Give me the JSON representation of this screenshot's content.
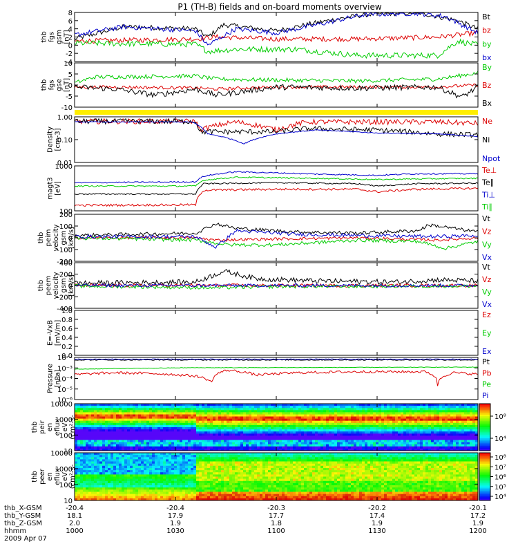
{
  "chart_data": {
    "type": "line",
    "title": "P1 (TH-B) fields and on-board moments overview",
    "colors": {
      "black": "#000000",
      "red": "#dd0000",
      "green": "#00cc00",
      "blue": "#0000cc",
      "yellow": "#ffee00"
    },
    "x_ticks": [
      {
        "utc": "1000",
        "x_gsm": "-20.4",
        "y_gsm": "18.1",
        "z_gsm": "2.0"
      },
      {
        "utc": "1030",
        "x_gsm": "-20.4",
        "y_gsm": "17.9",
        "z_gsm": "1.9"
      },
      {
        "utc": "1100",
        "x_gsm": "-20.3",
        "y_gsm": "17.7",
        "z_gsm": "1.8"
      },
      {
        "utc": "1130",
        "x_gsm": "-20.2",
        "y_gsm": "17.4",
        "z_gsm": "1.9"
      },
      {
        "utc": "1200",
        "x_gsm": "-20.1",
        "y_gsm": "17.2",
        "z_gsm": "1.9"
      }
    ],
    "x_row_labels": [
      "thb_X-GSM",
      "thb_Y-GSM",
      "thb_Z-GSM",
      "hhmm",
      "2009 Apr 07"
    ],
    "panels": [
      {
        "ylabel": [
          "thb",
          "fgs",
          "gsm",
          "[nT]"
        ],
        "ylim": [
          -4,
          8
        ],
        "ticks": [
          "8",
          "6",
          "4",
          "2",
          "0",
          "-2",
          "-4"
        ],
        "series": [
          {
            "name": "Bt",
            "color": "black"
          },
          {
            "name": "bz",
            "color": "red"
          },
          {
            "name": "by",
            "color": "green"
          },
          {
            "name": "bx",
            "color": "blue"
          }
        ]
      },
      {
        "ylabel": [
          "thb",
          "fgs",
          "gse",
          "[nT]"
        ],
        "ylim": [
          -12,
          10
        ],
        "ticks": [
          "10",
          "5",
          "0",
          "-5",
          "-10"
        ],
        "series": [
          {
            "name": "By",
            "color": "green"
          },
          {
            "name": "Bz",
            "color": "red"
          },
          {
            "name": "Bx",
            "color": "black"
          }
        ]
      },
      {
        "ylabel": [
          "Density",
          "[cm-3]"
        ],
        "scale": "log",
        "ylim": [
          0.01,
          1.2
        ],
        "ticks": [
          "1.00",
          "0.10",
          "0.01"
        ],
        "series": [
          {
            "name": "Ne",
            "color": "red"
          },
          {
            "name": "Ni",
            "color": "black"
          },
          {
            "name": "Npot",
            "color": "blue"
          }
        ]
      },
      {
        "ylabel": [
          "magt3",
          "[eV]"
        ],
        "scale": "log",
        "ylim": [
          50,
          6000
        ],
        "ticks": [
          "1000",
          "100"
        ],
        "series": [
          {
            "name": "Te⊥",
            "color": "red"
          },
          {
            "name": "Te∥",
            "color": "black"
          },
          {
            "name": "Ti⊥",
            "color": "blue"
          },
          {
            "name": "Ti∥",
            "color": "green"
          }
        ]
      },
      {
        "ylabel": [
          "thb",
          "peim",
          "velocity",
          "gsm",
          "[km/s]"
        ],
        "ylim": [
          -200,
          200
        ],
        "ticks": [
          "200",
          "100",
          "0",
          "-100",
          "-200"
        ],
        "series": [
          {
            "name": "Vt",
            "color": "black"
          },
          {
            "name": "Vz",
            "color": "red"
          },
          {
            "name": "Vy",
            "color": "green"
          },
          {
            "name": "Vx",
            "color": "blue"
          }
        ]
      },
      {
        "ylabel": [
          "thb",
          "peem",
          "velocity",
          "gsm",
          "[km/s]"
        ],
        "ylim": [
          -400,
          400
        ],
        "ticks": [
          "400",
          "200",
          "0",
          "-200",
          "-400"
        ],
        "series": [
          {
            "name": "Vt",
            "color": "black"
          },
          {
            "name": "Vz",
            "color": "red"
          },
          {
            "name": "Vy",
            "color": "green"
          },
          {
            "name": "Vx",
            "color": "blue"
          }
        ]
      },
      {
        "ylabel": [
          "E=-VxB",
          "[mV/m]"
        ],
        "ylim": [
          0,
          1
        ],
        "ticks": [
          "1.0",
          "0.8",
          "0.6",
          "0.4",
          "0.2",
          "0.0"
        ],
        "series": [
          {
            "name": "Ez",
            "color": "red"
          },
          {
            "name": "Ey",
            "color": "green"
          },
          {
            "name": "Ex",
            "color": "blue"
          }
        ]
      },
      {
        "ylabel": [
          "Pressure",
          "[nPa]"
        ],
        "scale": "log",
        "ylim": [
          1e-06,
          0.1
        ],
        "ticks": [
          "10⁻²",
          "10⁻³",
          "10⁻⁴",
          "10⁻⁵",
          "10⁻⁶"
        ],
        "series": [
          {
            "name": "Pt",
            "color": "black"
          },
          {
            "name": "Pb",
            "color": "red"
          },
          {
            "name": "Pe",
            "color": "green"
          },
          {
            "name": "Pi",
            "color": "blue"
          }
        ]
      },
      {
        "type": "heatmap",
        "ylabel": [
          "thb",
          "peir",
          "en",
          "eflux",
          "eV",
          "(cm²-s-",
          "sr-eV)"
        ],
        "scale": "log",
        "ylim": [
          7,
          20000
        ],
        "ticks": [
          "10000",
          "1000",
          "100",
          "10"
        ],
        "colorbar_ticks": [
          "10⁸",
          "10⁴"
        ]
      },
      {
        "type": "heatmap",
        "ylabel": [
          "thb",
          "peer",
          "en",
          "eflux",
          "eV",
          "(cm²-s-",
          "sr-eV)"
        ],
        "scale": "log",
        "ylim": [
          7,
          25000
        ],
        "ticks": [
          "10000",
          "1000",
          "100",
          "10"
        ],
        "colorbar_ticks": [
          "10⁸",
          "10⁷",
          "10⁶",
          "10⁵",
          "10⁴"
        ]
      }
    ]
  }
}
